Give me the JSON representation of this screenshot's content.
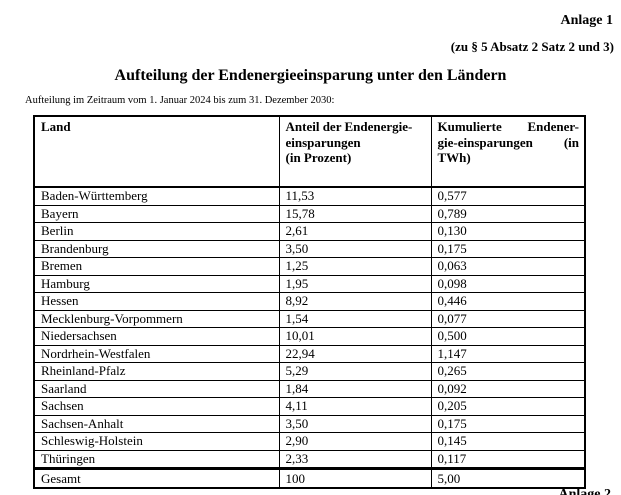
{
  "page": {
    "annotation_top": "Anlage 1",
    "annotation_sub": "(zu § 5 Absatz 2 Satz 2 und 3)",
    "title": "Aufteilung der Endenergieeinsparung unter den Ländern",
    "subtitle": "Aufteilung im Zeitraum vom 1. Januar 2024 bis zum 31. Dezember 2030:",
    "bottom_cut_text": "Anlage 2"
  },
  "table": {
    "columns": {
      "land": "Land",
      "anteil": "Anteil der Endenergie-\neinsparungen\n(in Prozent)",
      "kumuliert": "Kumulierte Endener-\ngie-einsparungen (in\nTWh)"
    },
    "rows": [
      {
        "land": "Baden-Württemberg",
        "anteil": "11,53",
        "kumuliert": "0,577"
      },
      {
        "land": "Bayern",
        "anteil": "15,78",
        "kumuliert": "0,789"
      },
      {
        "land": "Berlin",
        "anteil": "2,61",
        "kumuliert": "0,130"
      },
      {
        "land": "Brandenburg",
        "anteil": "3,50",
        "kumuliert": "0,175"
      },
      {
        "land": "Bremen",
        "anteil": "1,25",
        "kumuliert": "0,063"
      },
      {
        "land": "Hamburg",
        "anteil": "1,95",
        "kumuliert": "0,098"
      },
      {
        "land": "Hessen",
        "anteil": "8,92",
        "kumuliert": "0,446"
      },
      {
        "land": "Mecklenburg-Vorpommern",
        "anteil": "1,54",
        "kumuliert": "0,077"
      },
      {
        "land": "Niedersachsen",
        "anteil": "10,01",
        "kumuliert": "0,500"
      },
      {
        "land": "Nordrhein-Westfalen",
        "anteil": "22,94",
        "kumuliert": "1,147"
      },
      {
        "land": "Rheinland-Pfalz",
        "anteil": "5,29",
        "kumuliert": "0,265"
      },
      {
        "land": "Saarland",
        "anteil": "1,84",
        "kumuliert": "0,092"
      },
      {
        "land": "Sachsen",
        "anteil": "4,11",
        "kumuliert": "0,205"
      },
      {
        "land": "Sachsen-Anhalt",
        "anteil": "3,50",
        "kumuliert": "0,175"
      },
      {
        "land": "Schleswig-Holstein",
        "anteil": "2,90",
        "kumuliert": "0,145"
      },
      {
        "land": "Thüringen",
        "anteil": "2,33",
        "kumuliert": "0,117"
      }
    ],
    "total_row": {
      "land": "Gesamt",
      "anteil": "100",
      "kumuliert": "5,00"
    }
  }
}
